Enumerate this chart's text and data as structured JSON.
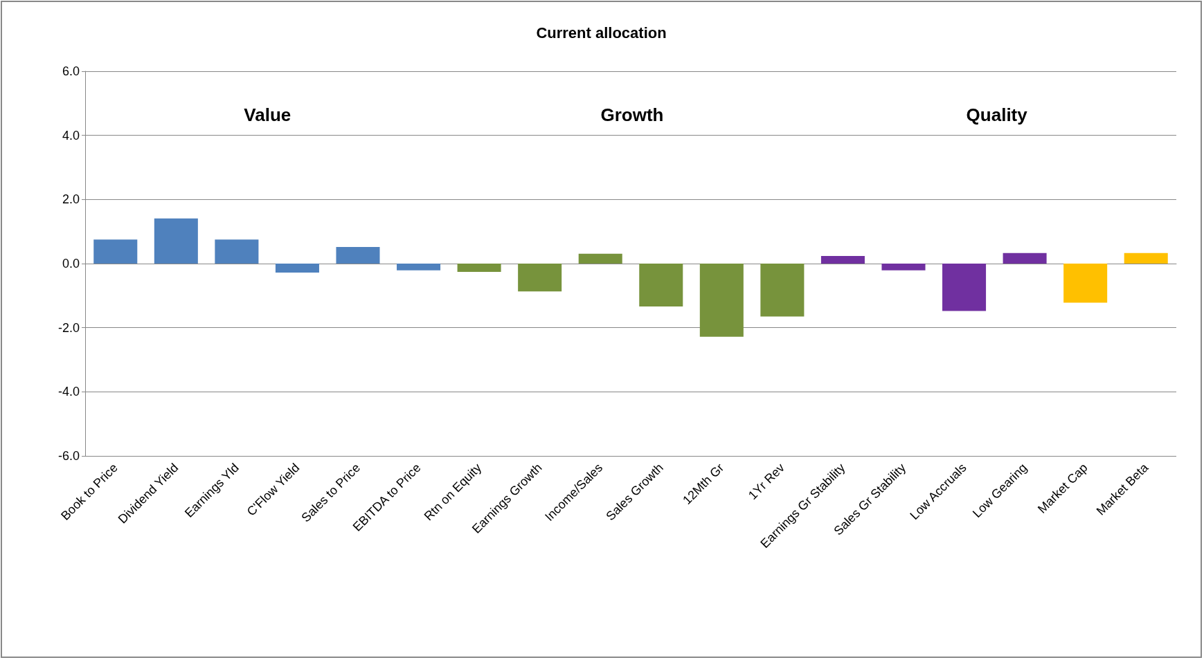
{
  "chart_data": {
    "type": "bar",
    "title": "Current allocation",
    "categories": [
      "Book to Price",
      "Dividend Yield",
      "Earnings Yld",
      "C'Flow Yield",
      "Sales to Price",
      "EBITDA to Price",
      "Rtn on Equity",
      "Earnings Growth",
      "Income/Sales",
      "Sales Growth",
      "12Mth Gr",
      "1Yr Rev",
      "Earnings Gr Stability",
      "Sales Gr Stability",
      "Low Accruals",
      "Low Gearing",
      "Market Cap",
      "Market Beta"
    ],
    "values": [
      0.75,
      1.41,
      0.75,
      -0.28,
      0.52,
      -0.21,
      -0.26,
      -0.87,
      0.31,
      -1.34,
      -2.28,
      -1.65,
      0.24,
      -0.21,
      -1.48,
      0.33,
      -1.22,
      0.33
    ],
    "colors": [
      "#4f81bd",
      "#4f81bd",
      "#4f81bd",
      "#4f81bd",
      "#4f81bd",
      "#4f81bd",
      "#77933c",
      "#77933c",
      "#77933c",
      "#77933c",
      "#77933c",
      "#77933c",
      "#7030a0",
      "#7030a0",
      "#7030a0",
      "#7030a0",
      "#ffc000",
      "#ffc000"
    ],
    "annotations": [
      "Value",
      "Growth",
      "Quality"
    ],
    "ylim": [
      -6,
      6
    ],
    "yticks": [
      {
        "value": -6,
        "label": "-6.0"
      },
      {
        "value": -4,
        "label": "-4.0"
      },
      {
        "value": -2,
        "label": "-2.0"
      },
      {
        "value": 0,
        "label": "0.0"
      },
      {
        "value": 2,
        "label": "2.0"
      },
      {
        "value": 4,
        "label": "4.0"
      },
      {
        "value": 6,
        "label": "6.0"
      }
    ],
    "grid": "y"
  }
}
